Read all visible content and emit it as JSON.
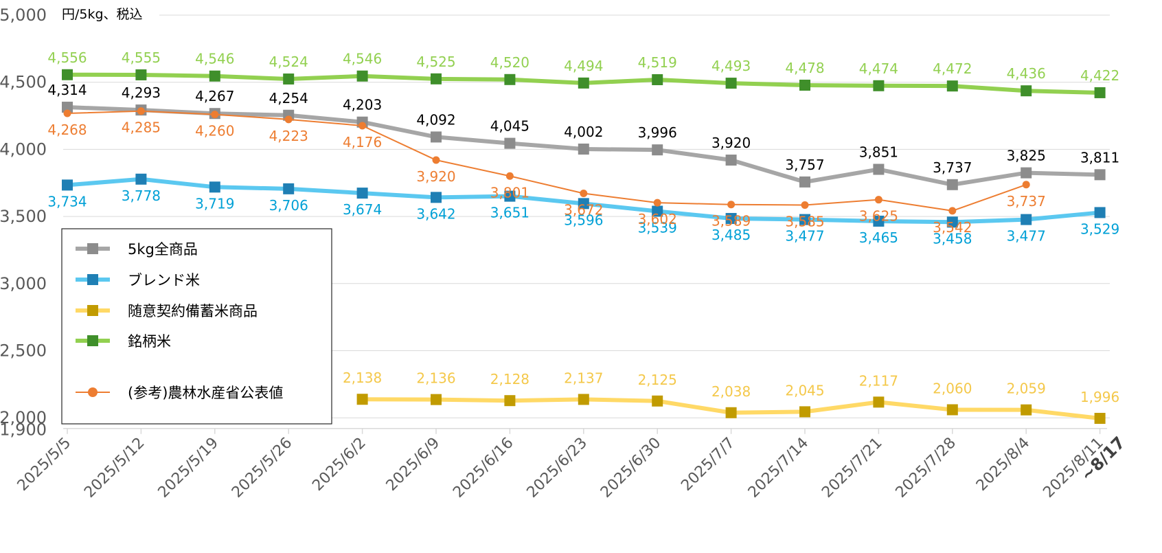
{
  "chart_data": {
    "type": "line",
    "unit_label": "円/5kg、税込",
    "ylim": [
      1900,
      5000
    ],
    "yticks": [
      "5,000",
      "4,500",
      "4,000",
      "3,500",
      "3,000",
      "2,500",
      "2,000",
      "1,900"
    ],
    "ytick_values": [
      5000,
      4500,
      4000,
      3500,
      3000,
      2500,
      2000,
      1900
    ],
    "categories": [
      "2025/5/5",
      "2025/5/12",
      "2025/5/19",
      "2025/5/26",
      "2025/6/2",
      "2025/6/9",
      "2025/6/16",
      "2025/6/23",
      "2025/6/30",
      "2025/7/7",
      "2025/7/14",
      "2025/7/21",
      "2025/7/28",
      "2025/8/4",
      "2025/8/11"
    ],
    "last_category_suffix": "~8/17",
    "grid": true,
    "legend_position": "lower-left",
    "series": [
      {
        "name": "5kg全商品",
        "line_color": "#a6a6a6",
        "marker_color": "#8c8c8c",
        "label_color": "#000000",
        "marker": "square",
        "label_pos": "above",
        "values": [
          4314,
          4293,
          4267,
          4254,
          4203,
          4092,
          4045,
          4002,
          3996,
          3920,
          3757,
          3851,
          3737,
          3825,
          3811
        ],
        "labels": [
          "4,314",
          "4,293",
          "4,267",
          "4,254",
          "4,203",
          "4,092",
          "4,045",
          "4,002",
          "3,996",
          "3,920",
          "3,757",
          "3,851",
          "3,737",
          "3,825",
          "3,811"
        ]
      },
      {
        "name": "ブレンド米",
        "line_color": "#5bc8f0",
        "marker_color": "#1f7fb4",
        "label_color": "#00a0d6",
        "marker": "square",
        "label_pos": "below",
        "values": [
          3734,
          3778,
          3719,
          3706,
          3674,
          3642,
          3651,
          3596,
          3539,
          3485,
          3477,
          3465,
          3458,
          3477,
          3529
        ],
        "labels": [
          "3,734",
          "3,778",
          "3,719",
          "3,706",
          "3,674",
          "3,642",
          "3,651",
          "3,596",
          "3,539",
          "3,485",
          "3,477",
          "3,465",
          "3,458",
          "3,477",
          "3,529"
        ]
      },
      {
        "name": "随意契約備蓄米商品",
        "line_color": "#ffd966",
        "marker_color": "#c19b00",
        "label_color": "#f4c84a",
        "marker": "square",
        "label_pos": "above",
        "values": [
          null,
          null,
          null,
          null,
          2138,
          2136,
          2128,
          2137,
          2125,
          2038,
          2045,
          2117,
          2060,
          2059,
          1996
        ],
        "labels": [
          "",
          "",
          "",
          "",
          "2,138",
          "2,136",
          "2,128",
          "2,137",
          "2,125",
          "2,038",
          "2,045",
          "2,117",
          "2,060",
          "2,059",
          "1,996"
        ]
      },
      {
        "name": "銘柄米",
        "line_color": "#92d050",
        "marker_color": "#3f8f2a",
        "label_color": "#92d050",
        "marker": "square",
        "label_pos": "above",
        "values": [
          4556,
          4555,
          4546,
          4524,
          4546,
          4525,
          4520,
          4494,
          4519,
          4493,
          4478,
          4474,
          4472,
          4436,
          4422
        ],
        "labels": [
          "4,556",
          "4,555",
          "4,546",
          "4,524",
          "4,546",
          "4,525",
          "4,520",
          "4,494",
          "4,519",
          "4,493",
          "4,478",
          "4,474",
          "4,472",
          "4,436",
          "4,422"
        ]
      },
      {
        "name": "(参考)農林水産省公表値",
        "line_color": "#ed7d31",
        "marker_color": "#ed7d31",
        "label_color": "#ed7d31",
        "marker": "circle",
        "label_pos": "below",
        "values": [
          4268,
          4285,
          4260,
          4223,
          4176,
          3920,
          3801,
          3672,
          3602,
          3589,
          3585,
          3625,
          3542,
          3737,
          null
        ],
        "labels": [
          "4,268",
          "4,285",
          "4,260",
          "4,223",
          "4,176",
          "3,920",
          "3,801",
          "3,672",
          "3,602",
          "3,589",
          "3,585",
          "3,625",
          "3,542",
          "3,737",
          ""
        ]
      }
    ]
  }
}
